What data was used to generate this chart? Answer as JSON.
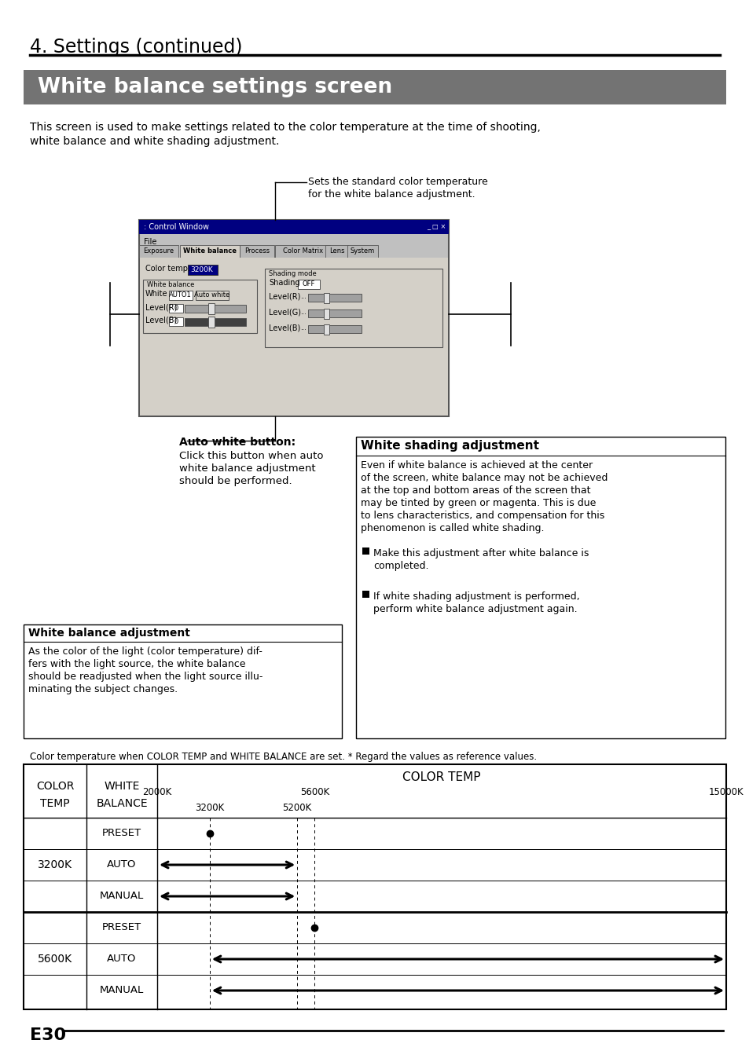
{
  "page_title": "4. Settings (continued)",
  "section_title": "White balance settings screen",
  "section_title_bg": "#666666",
  "section_title_color": "#ffffff",
  "intro_line1": "This screen is used to make settings related to the color temperature at the time of shooting,",
  "intro_line2": "white balance and white shading adjustment.",
  "callout_text_line1": "Sets the standard color temperature",
  "callout_text_line2": "for the white balance adjustment.",
  "auto_white_label": "Auto white button:",
  "auto_white_line1": "Click this button when auto",
  "auto_white_line2": "white balance adjustment",
  "auto_white_line3": "should be performed.",
  "wb_adjust_title": "White balance adjustment",
  "wb_adjust_line1": "As the color of the light (color temperature) dif-",
  "wb_adjust_line2": "fers with the light source, the white balance",
  "wb_adjust_line3": "should be readjusted when the light source illu-",
  "wb_adjust_line4": "minating the subject changes.",
  "ws_adjust_title": "White shading adjustment",
  "ws_adjust_line1": "Even if white balance is achieved at the center",
  "ws_adjust_line2": "of the screen, white balance may not be achieved",
  "ws_adjust_line3": "at the top and bottom areas of the screen that",
  "ws_adjust_line4": "may be tinted by green or magenta. This is due",
  "ws_adjust_line5": "to lens characteristics, and compensation for this",
  "ws_adjust_line6": "phenomenon is called white shading.",
  "ws_bullet1_line1": "Make this adjustment after white balance is",
  "ws_bullet1_line2": "completed.",
  "ws_bullet2_line1": "If white shading adjustment is performed,",
  "ws_bullet2_line2": "perform white balance adjustment again.",
  "table_note": "Color temperature when COLOR TEMP and WHITE BALANCE are set. * Regard the values as reference values.",
  "col1_header1": "COLOR",
  "col1_header2": "TEMP",
  "col2_header1": "WHITE",
  "col2_header2": "BALANCE",
  "col3_header": "COLOR TEMP",
  "row_group1": "3200K",
  "row_group2": "5600K",
  "row_labels": [
    "PRESET",
    "AUTO",
    "MANUAL",
    "PRESET",
    "AUTO",
    "MANUAL"
  ],
  "footer_text": "E30",
  "bg_color": "#ffffff",
  "section_bg": "#737373",
  "black": "#000000",
  "win_bg": "#c0c0c0",
  "win_titlebar": "#000080",
  "win_content_bg": "#d4d0c8",
  "win_dark_blue": "#000080"
}
